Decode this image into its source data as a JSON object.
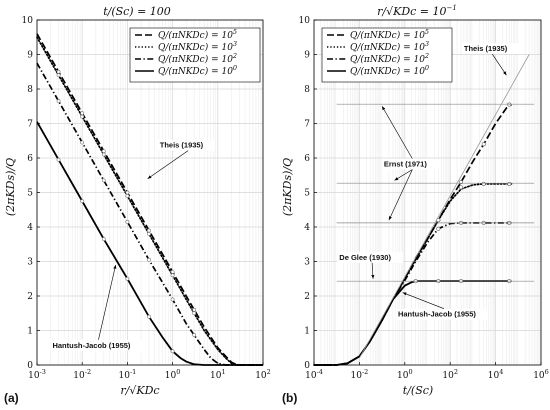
{
  "chart_data": [
    {
      "type": "line",
      "panel_label": "(a)",
      "title": "t/(Sc) = 100",
      "xlabel": "r/√KDc",
      "ylabel": "(2πKDs)/Q",
      "xscale": "log",
      "xlim": [
        0.001,
        100
      ],
      "ylim": [
        0,
        10
      ],
      "x_ticks": [
        0.001,
        0.01,
        0.1,
        1,
        10,
        100
      ],
      "x_tick_labels": [
        [
          "10",
          "-3"
        ],
        [
          "10",
          "-2"
        ],
        [
          "10",
          "-1"
        ],
        [
          "10",
          "0"
        ],
        [
          "10",
          "1"
        ],
        [
          "10",
          "2"
        ]
      ],
      "y_ticks": [
        0,
        1,
        2,
        3,
        4,
        5,
        6,
        7,
        8,
        9,
        10
      ],
      "y_tick_labels": [
        "0",
        "1",
        "2",
        "3",
        "4",
        "5",
        "6",
        "7",
        "8",
        "9",
        "10"
      ],
      "grid": true,
      "legend_placement": "top-right",
      "legend": [
        {
          "text": "Q/(πNKDc) = 10",
          "exp": "5",
          "style": "dashed"
        },
        {
          "text": "Q/(πNKDc) = 10",
          "exp": "3",
          "style": "dotted"
        },
        {
          "text": "Q/(πNKDc) = 10",
          "exp": "2",
          "style": "dashdot"
        },
        {
          "text": "Q/(πNKDc) = 10",
          "exp": "0",
          "style": "solid"
        }
      ],
      "series": [
        {
          "style": "dashed",
          "x": [
            0.001,
            0.003,
            0.01,
            0.03,
            0.1,
            0.3,
            1,
            2,
            5,
            10,
            15,
            20,
            25,
            30,
            50,
            100
          ],
          "y": [
            9.6,
            8.5,
            7.3,
            6.2,
            5.0,
            3.9,
            2.7,
            2.0,
            1.1,
            0.5,
            0.25,
            0.08,
            0.02,
            0.0,
            0.0,
            0.0
          ]
        },
        {
          "style": "dotted",
          "x": [
            0.001,
            0.003,
            0.01,
            0.03,
            0.1,
            0.3,
            1,
            2,
            5,
            10,
            15,
            20,
            25,
            30,
            50,
            100
          ],
          "y": [
            9.5,
            8.4,
            7.2,
            6.1,
            4.9,
            3.8,
            2.6,
            1.9,
            1.0,
            0.45,
            0.2,
            0.05,
            0.01,
            0.0,
            0.0,
            0.0
          ]
        },
        {
          "style": "dashdot",
          "x": [
            0.001,
            0.003,
            0.01,
            0.03,
            0.1,
            0.3,
            1,
            2,
            5,
            7,
            10,
            15,
            20,
            100
          ],
          "y": [
            8.75,
            7.65,
            6.45,
            5.35,
            4.15,
            3.05,
            1.9,
            1.2,
            0.45,
            0.2,
            0.05,
            0.0,
            0.0,
            0.0
          ]
        },
        {
          "style": "solid",
          "x": [
            0.001,
            0.003,
            0.01,
            0.03,
            0.1,
            0.3,
            0.6,
            1,
            1.5,
            2,
            3,
            5,
            100
          ],
          "y": [
            7.05,
            5.95,
            4.75,
            3.65,
            2.5,
            1.4,
            0.8,
            0.4,
            0.2,
            0.1,
            0.02,
            0.0,
            0.0
          ]
        }
      ],
      "reference_markers_x": [
        0.003,
        0.01,
        0.03,
        0.1,
        0.3,
        1,
        3
      ],
      "annotations": [
        {
          "text": "Theis (1935)",
          "x": 0.52,
          "y": 6.3,
          "arrow_to": [
            0.28,
            5.4
          ]
        },
        {
          "text": "Hantush-Jacob (1955)",
          "x": 0.0022,
          "y": 0.5,
          "arrow_to": [
            0.055,
            2.9
          ]
        }
      ]
    },
    {
      "type": "line",
      "panel_label": "(b)",
      "title": "r/√KDc = 10",
      "title_exp": "−1",
      "xlabel": "t/(Sc)",
      "ylabel": "(2πKDs)/Q",
      "xscale": "log",
      "xlim": [
        0.0001,
        1000000
      ],
      "ylim": [
        0,
        10
      ],
      "x_ticks": [
        0.0001,
        0.01,
        1,
        100,
        10000,
        1000000
      ],
      "x_tick_labels": [
        [
          "10",
          "-4"
        ],
        [
          "10",
          "-2"
        ],
        [
          "10",
          "0"
        ],
        [
          "10",
          "2"
        ],
        [
          "10",
          "4"
        ],
        [
          "10",
          "6"
        ]
      ],
      "y_ticks": [
        0,
        1,
        2,
        3,
        4,
        5,
        6,
        7,
        8,
        9,
        10
      ],
      "y_tick_labels": [
        "0",
        "1",
        "2",
        "3",
        "4",
        "5",
        "6",
        "7",
        "8",
        "9",
        "10"
      ],
      "grid": true,
      "legend_placement": "top-left",
      "legend": [
        {
          "text": "Q/(πNKDc) = 10",
          "exp": "5",
          "style": "dashed"
        },
        {
          "text": "Q/(πNKDc) = 10",
          "exp": "3",
          "style": "dotted"
        },
        {
          "text": "Q/(πNKDc) = 10",
          "exp": "2",
          "style": "dashdot"
        },
        {
          "text": "Q/(πNKDc) = 10",
          "exp": "0",
          "style": "solid"
        }
      ],
      "series": [
        {
          "style": "dashed",
          "x": [
            0.0001,
            0.001,
            0.003,
            0.01,
            0.03,
            0.1,
            0.3,
            1,
            3,
            10,
            30,
            100,
            300,
            1000,
            3000,
            10000,
            30000,
            50000
          ],
          "y": [
            0.0,
            0.0,
            0.05,
            0.25,
            0.7,
            1.3,
            1.9,
            2.5,
            3.1,
            3.65,
            4.2,
            4.8,
            5.3,
            5.9,
            6.4,
            7.0,
            7.45,
            7.55
          ]
        },
        {
          "style": "dotted",
          "x": [
            0.0001,
            0.001,
            0.003,
            0.01,
            0.03,
            0.1,
            0.3,
            1,
            3,
            10,
            30,
            100,
            300,
            1000,
            3000,
            10000,
            50000
          ],
          "y": [
            0.0,
            0.0,
            0.05,
            0.25,
            0.7,
            1.3,
            1.9,
            2.5,
            3.05,
            3.65,
            4.2,
            4.75,
            5.1,
            5.22,
            5.25,
            5.25,
            5.25
          ]
        },
        {
          "style": "dashdot",
          "x": [
            0.0001,
            0.001,
            0.003,
            0.01,
            0.03,
            0.1,
            0.3,
            1,
            3,
            10,
            30,
            100,
            300,
            1000,
            10000,
            50000
          ],
          "y": [
            0.0,
            0.0,
            0.05,
            0.25,
            0.7,
            1.3,
            1.9,
            2.45,
            3.0,
            3.55,
            3.95,
            4.1,
            4.12,
            4.12,
            4.12,
            4.12
          ]
        },
        {
          "style": "solid",
          "x": [
            0.0001,
            0.001,
            0.003,
            0.01,
            0.03,
            0.1,
            0.3,
            1,
            2,
            3,
            10,
            100,
            50000
          ],
          "y": [
            0.0,
            0.0,
            0.05,
            0.25,
            0.7,
            1.3,
            1.9,
            2.3,
            2.4,
            2.43,
            2.43,
            2.43,
            2.43
          ]
        }
      ],
      "asymptotes": [
        7.56,
        5.27,
        4.12,
        2.43
      ],
      "theis_line": {
        "x": [
          0.01,
          300000
        ],
        "y": [
          0.2,
          9.0
        ]
      },
      "reference_markers": [
        {
          "x": [
            30,
            300,
            3000,
            40000
          ],
          "y": [
            4.2,
            5.3,
            6.4,
            7.55
          ]
        },
        {
          "x": [
            30,
            300,
            3000,
            40000
          ],
          "y": [
            4.2,
            5.15,
            5.25,
            5.25
          ]
        },
        {
          "x": [
            30,
            300,
            3000,
            40000
          ],
          "y": [
            3.95,
            4.12,
            4.12,
            4.12
          ]
        },
        {
          "x": [
            3,
            30,
            300,
            40000
          ],
          "y": [
            2.43,
            2.43,
            2.43,
            2.43
          ]
        }
      ],
      "annotations": [
        {
          "text": "Theis (1935)",
          "x": 400,
          "y": 9.1,
          "arrow_to": [
            30000,
            8.4
          ]
        },
        {
          "text": "Ernst (1971)",
          "x": 0.12,
          "y": 5.75,
          "arrows_to": [
            [
              0.1,
              7.5
            ],
            [
              0.35,
              5.35
            ],
            [
              0.2,
              4.2
            ]
          ]
        },
        {
          "text": "De Glee (1930)",
          "x": 0.0013,
          "y": 3.05,
          "arrow_to": [
            0.04,
            2.5
          ]
        },
        {
          "text": "Hantush-Jacob (1955)",
          "x": 0.5,
          "y": 1.4,
          "arrow_to": [
            0.8,
            2.1
          ]
        }
      ]
    }
  ]
}
